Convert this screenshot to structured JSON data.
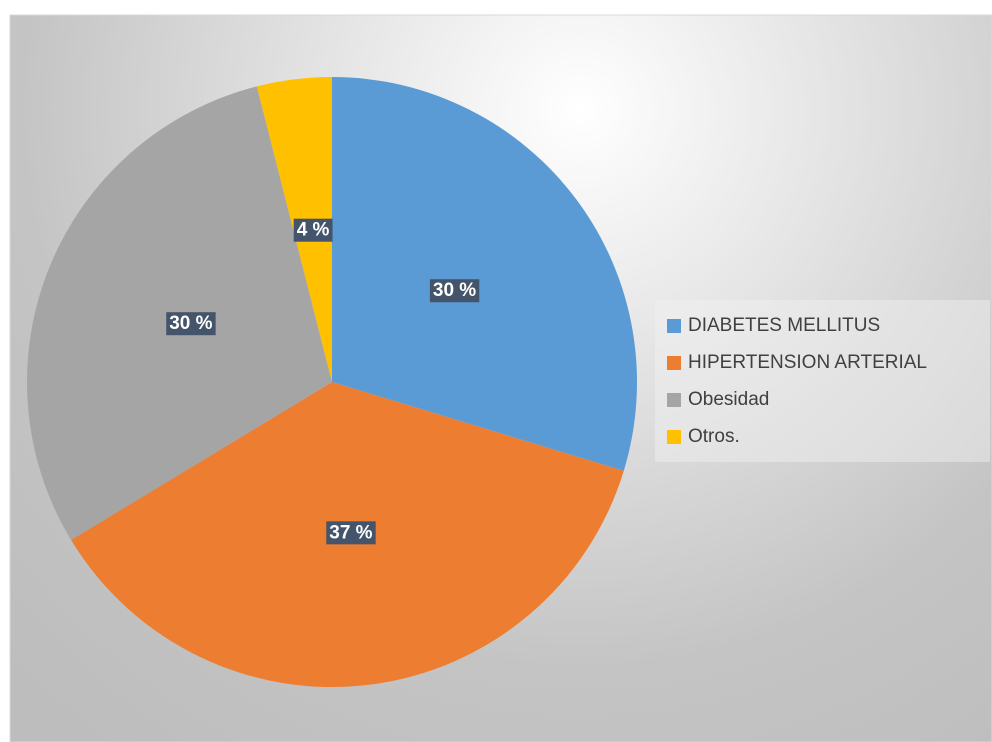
{
  "chart_data": {
    "type": "pie",
    "categories": [
      "DIABETES MELLITUS",
      "HIPERTENSION ARTERIAL",
      "Obesidad",
      "Otros."
    ],
    "values": [
      30,
      37,
      30,
      4
    ],
    "value_labels": [
      "30 %",
      "37 %",
      "30 %",
      "4 %"
    ],
    "colors": [
      "#5b9bd5",
      "#ed7d31",
      "#a5a5a5",
      "#ffc000"
    ],
    "legend": "right"
  }
}
